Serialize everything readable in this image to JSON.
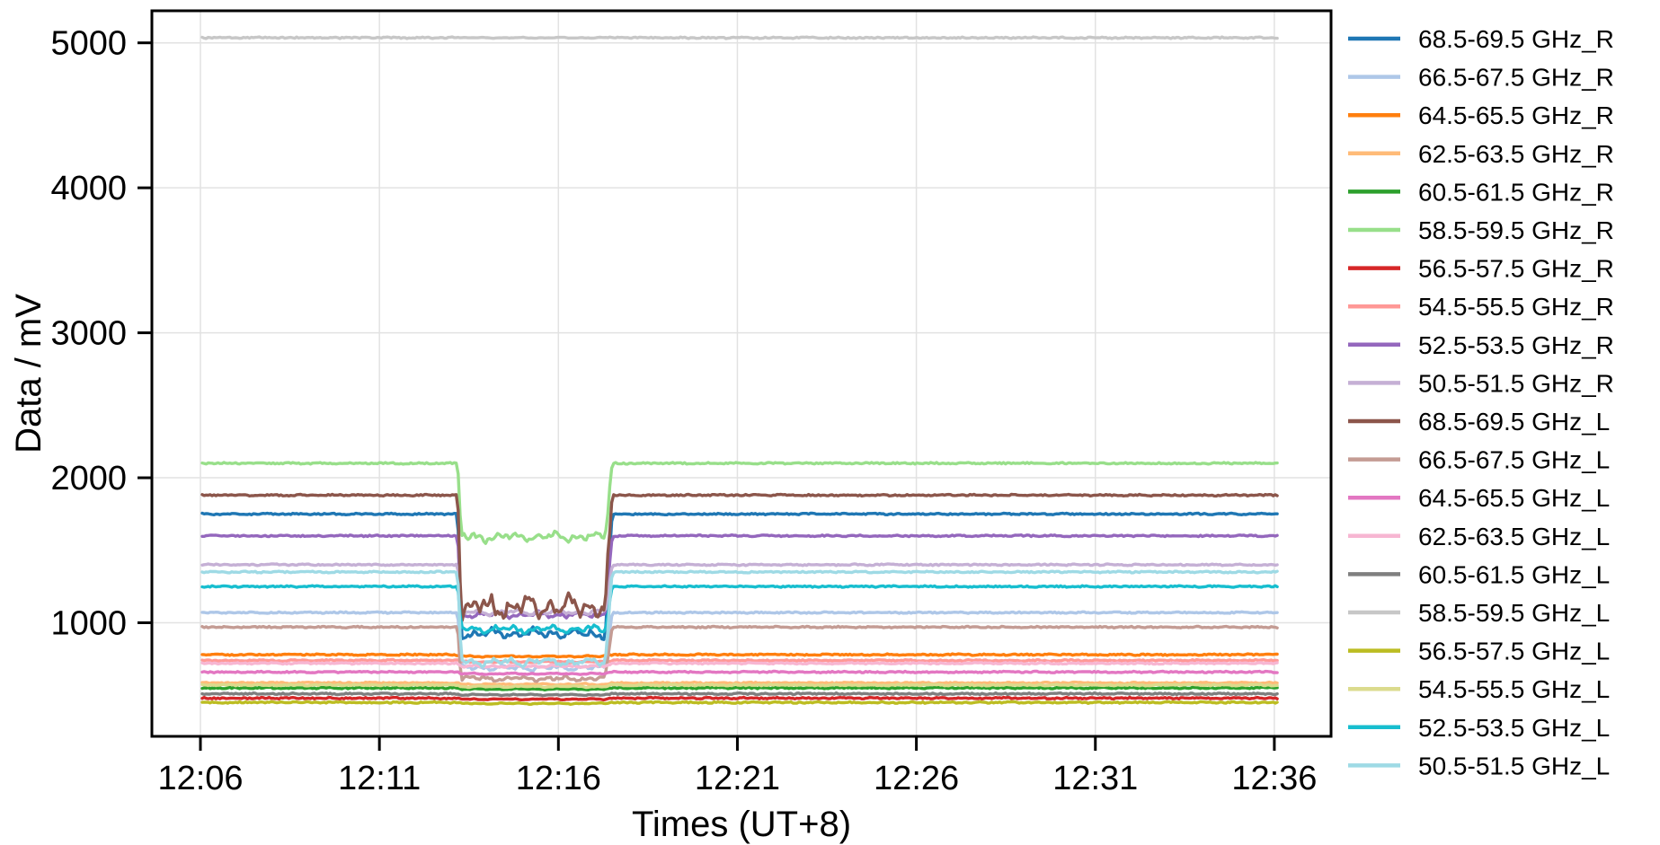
{
  "chart_data": {
    "type": "line",
    "title": "",
    "xlabel": "Times (UT+8)",
    "ylabel": "Data / mV",
    "x_tick_labels": [
      "12:06",
      "12:11",
      "12:16",
      "12:21",
      "12:26",
      "12:31",
      "12:36"
    ],
    "x_tick_minutes": [
      6,
      11,
      16,
      21,
      26,
      31,
      36
    ],
    "y_ticks": [
      1000,
      2000,
      3000,
      4000,
      5000
    ],
    "y_tick_labels": [
      "1000",
      "2000",
      "3000",
      "4000",
      "5000"
    ],
    "ylim_mV": [
      215,
      5220
    ],
    "xlim_times": [
      "12:04.6",
      "12:37.7"
    ],
    "grid": true,
    "legend_position": "right-outside",
    "data_start_min": 6.05,
    "data_end_min": 36.1,
    "dip_window": {
      "start_min": 13.17,
      "end_min": 17.28,
      "start_time_approx": "12:13.2",
      "end_time_approx": "12:17.3"
    },
    "series": [
      {
        "name": "68.5-69.5 GHz_R",
        "color": "#1f77b4",
        "steady_mV": 1750,
        "dip_mV": 925,
        "dip_noise_mV": 30
      },
      {
        "name": "66.5-67.5 GHz_R",
        "color": "#aec7e8",
        "steady_mV": 1070,
        "dip_mV": 690,
        "dip_noise_mV": 20
      },
      {
        "name": "64.5-65.5 GHz_R",
        "color": "#ff7f0e",
        "steady_mV": 780,
        "dip_mV": 768,
        "dip_noise_mV": 5
      },
      {
        "name": "62.5-63.5 GHz_R",
        "color": "#ffbb78",
        "steady_mV": 585,
        "dip_mV": 575,
        "dip_noise_mV": 5
      },
      {
        "name": "60.5-61.5 GHz_R",
        "color": "#2ca02c",
        "steady_mV": 550,
        "dip_mV": 542,
        "dip_noise_mV": 4
      },
      {
        "name": "58.5-59.5 GHz_R",
        "color": "#98df8a",
        "steady_mV": 2100,
        "dip_mV": 1592,
        "dip_noise_mV": 30
      },
      {
        "name": "56.5-57.5 GHz_R",
        "color": "#d62728",
        "steady_mV": 480,
        "dip_mV": 473,
        "dip_noise_mV": 4
      },
      {
        "name": "54.5-55.5 GHz_R",
        "color": "#ff9896",
        "steady_mV": 740,
        "dip_mV": 730,
        "dip_noise_mV": 5
      },
      {
        "name": "52.5-53.5 GHz_R",
        "color": "#9467bd",
        "steady_mV": 1600,
        "dip_mV": 1055,
        "dip_noise_mV": 20
      },
      {
        "name": "50.5-51.5 GHz_R",
        "color": "#c5b0d5",
        "steady_mV": 1400,
        "dip_mV": 1072,
        "dip_noise_mV": 18
      },
      {
        "name": "68.5-69.5 GHz_L",
        "color": "#8c564b",
        "steady_mV": 1880,
        "dip_mV": 1110,
        "dip_noise_mV": 70
      },
      {
        "name": "66.5-67.5 GHz_L",
        "color": "#c49c94",
        "steady_mV": 970,
        "dip_mV": 615,
        "dip_noise_mV": 15
      },
      {
        "name": "64.5-65.5 GHz_L",
        "color": "#e377c2",
        "steady_mV": 660,
        "dip_mV": 648,
        "dip_noise_mV": 5
      },
      {
        "name": "62.5-63.5 GHz_L",
        "color": "#f7b6d2",
        "steady_mV": 720,
        "dip_mV": 700,
        "dip_noise_mV": 8
      },
      {
        "name": "60.5-61.5 GHz_L",
        "color": "#7f7f7f",
        "steady_mV": 510,
        "dip_mV": 503,
        "dip_noise_mV": 4
      },
      {
        "name": "58.5-59.5 GHz_L",
        "color": "#c7c7c7",
        "steady_mV": 5035,
        "dip_mV": 5035,
        "dip_noise_mV": 3
      },
      {
        "name": "56.5-57.5 GHz_L",
        "color": "#bcbd22",
        "steady_mV": 450,
        "dip_mV": 443,
        "dip_noise_mV": 4
      },
      {
        "name": "54.5-55.5 GHz_L",
        "color": "#dbdb8d",
        "steady_mV": 570,
        "dip_mV": 560,
        "dip_noise_mV": 5
      },
      {
        "name": "52.5-53.5 GHz_L",
        "color": "#17becf",
        "steady_mV": 1250,
        "dip_mV": 955,
        "dip_noise_mV": 25
      },
      {
        "name": "50.5-51.5 GHz_L",
        "color": "#9edae5",
        "steady_mV": 1350,
        "dip_mV": 730,
        "dip_noise_mV": 25
      }
    ],
    "steady_noise_mV": 4.5,
    "colors": {
      "grid": "#e2e2e2",
      "spine": "#000000",
      "background": "#ffffff"
    }
  }
}
